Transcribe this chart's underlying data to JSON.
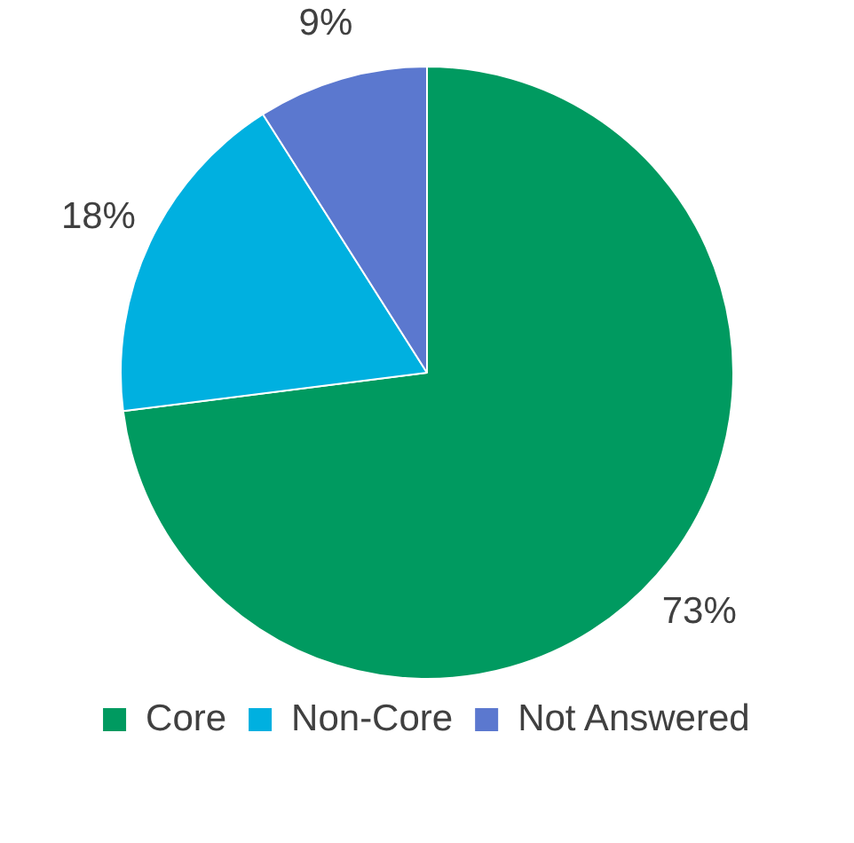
{
  "chart_data": {
    "type": "pie",
    "categories": [
      "Core",
      "Non-Core",
      "Not Answered"
    ],
    "values": [
      73,
      18,
      9
    ],
    "colors": [
      "#009a60",
      "#00b0e0",
      "#5b78cf"
    ],
    "value_labels": [
      "73%",
      "18%",
      "9%"
    ],
    "legend": "bottom"
  }
}
